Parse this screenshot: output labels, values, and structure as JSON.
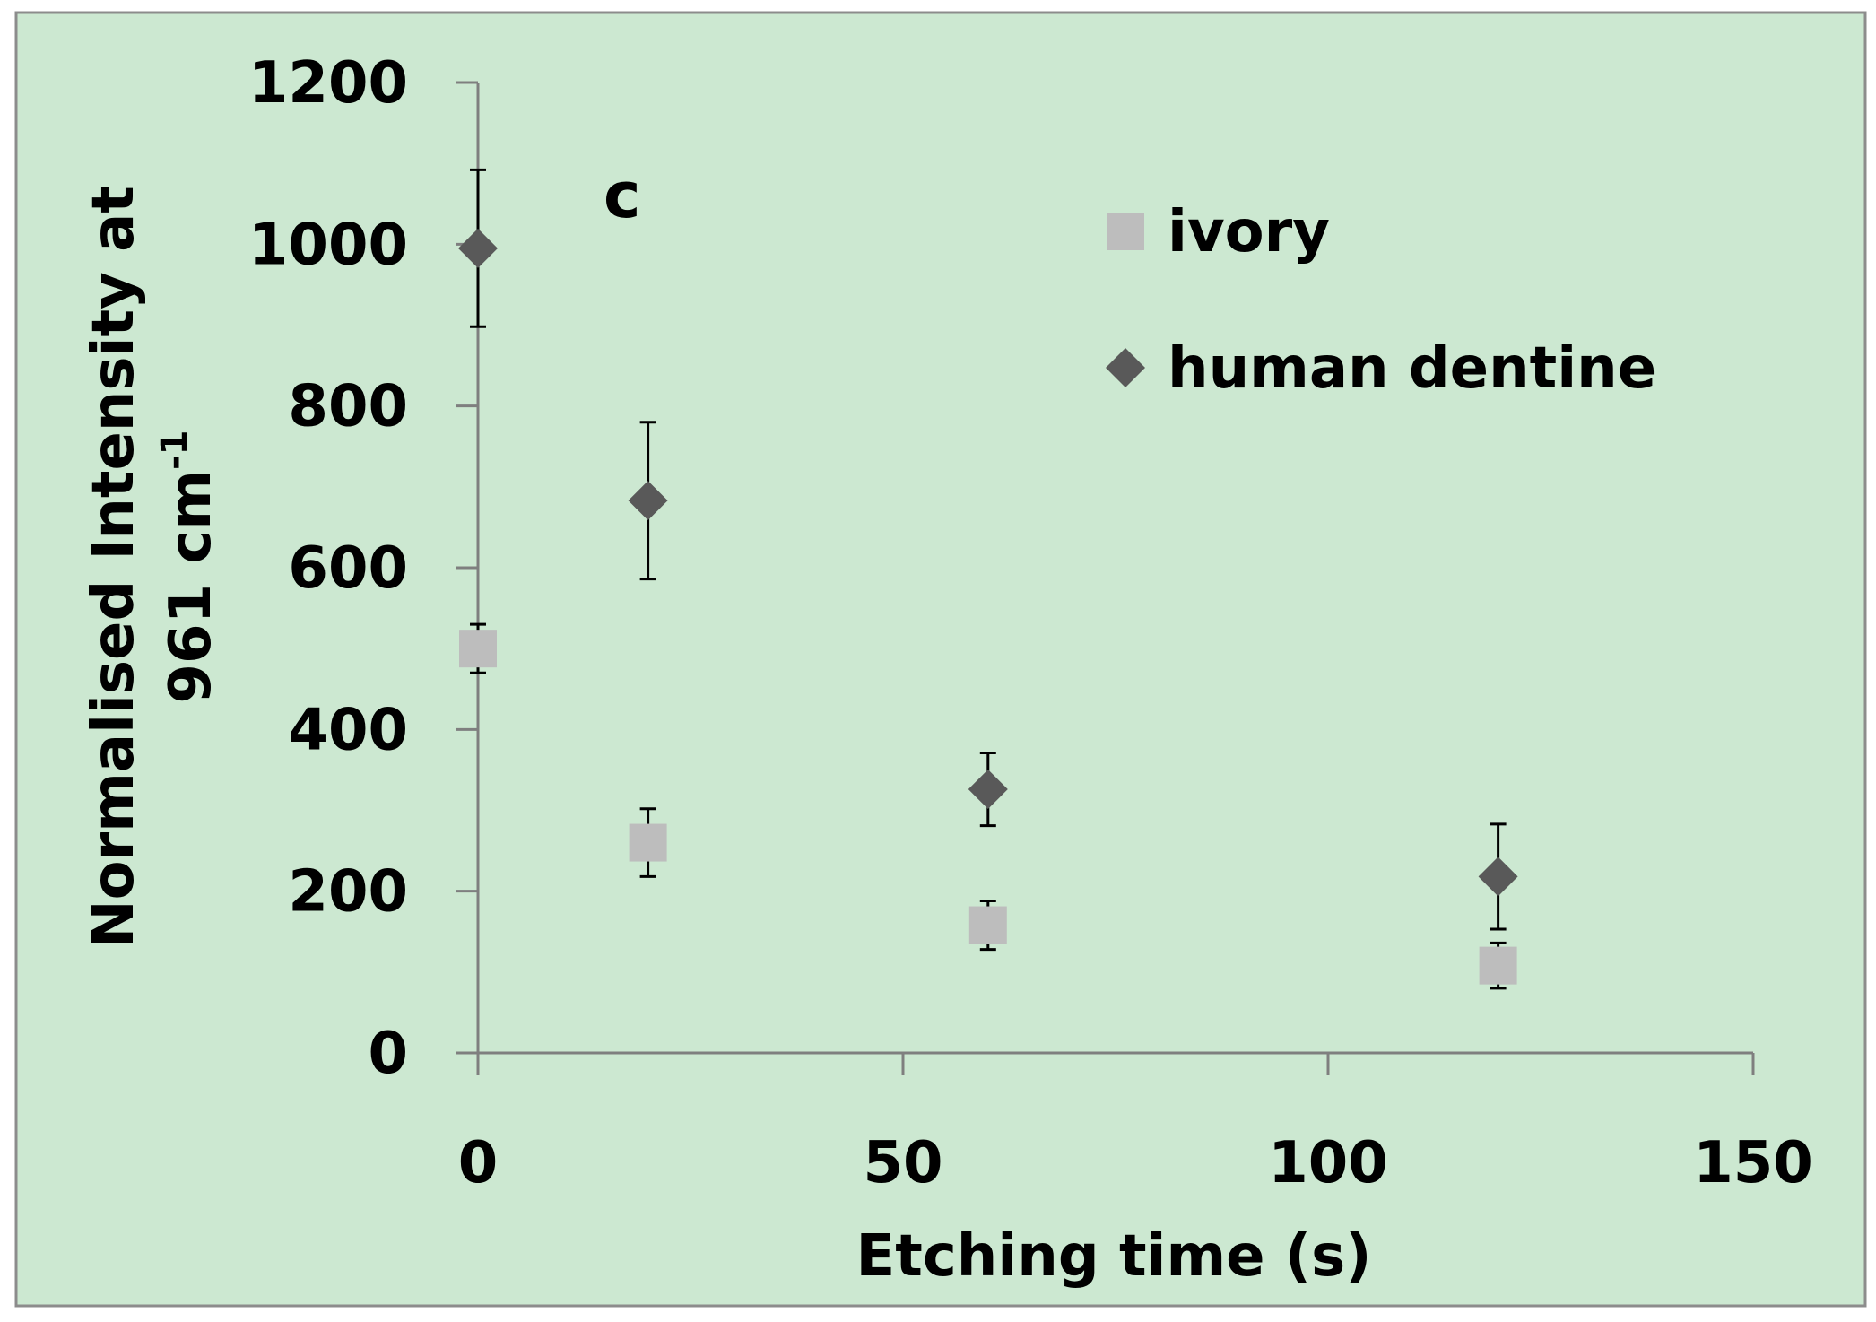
{
  "chart_data": {
    "type": "scatter",
    "title": "",
    "panel_label": "c",
    "xlabel": "Etching time (s)",
    "ylabel_line1": "Normalised Intensity at",
    "ylabel_line2_main": "961 cm",
    "ylabel_line2_sup": "-1",
    "xlim": [
      0,
      150
    ],
    "ylim": [
      0,
      1200
    ],
    "x_ticks": [
      0,
      50,
      100,
      150
    ],
    "y_ticks": [
      0,
      200,
      400,
      600,
      800,
      1000,
      1200
    ],
    "grid": false,
    "legend_position": "top-right",
    "background_color": "#cce8d1",
    "series": [
      {
        "name": "ivory",
        "marker": "square",
        "color": "#bdbdbd",
        "points": [
          {
            "x": 0,
            "y": 500,
            "err": 30
          },
          {
            "x": 20,
            "y": 260,
            "err": 42
          },
          {
            "x": 60,
            "y": 158,
            "err": 30
          },
          {
            "x": 120,
            "y": 108,
            "err": 28
          }
        ]
      },
      {
        "name": "human dentine",
        "marker": "diamond",
        "color": "#595959",
        "points": [
          {
            "x": 0,
            "y": 995,
            "err": 97
          },
          {
            "x": 20,
            "y": 683,
            "err": 97
          },
          {
            "x": 60,
            "y": 326,
            "err": 45
          },
          {
            "x": 120,
            "y": 218,
            "err": 65
          }
        ]
      }
    ]
  }
}
